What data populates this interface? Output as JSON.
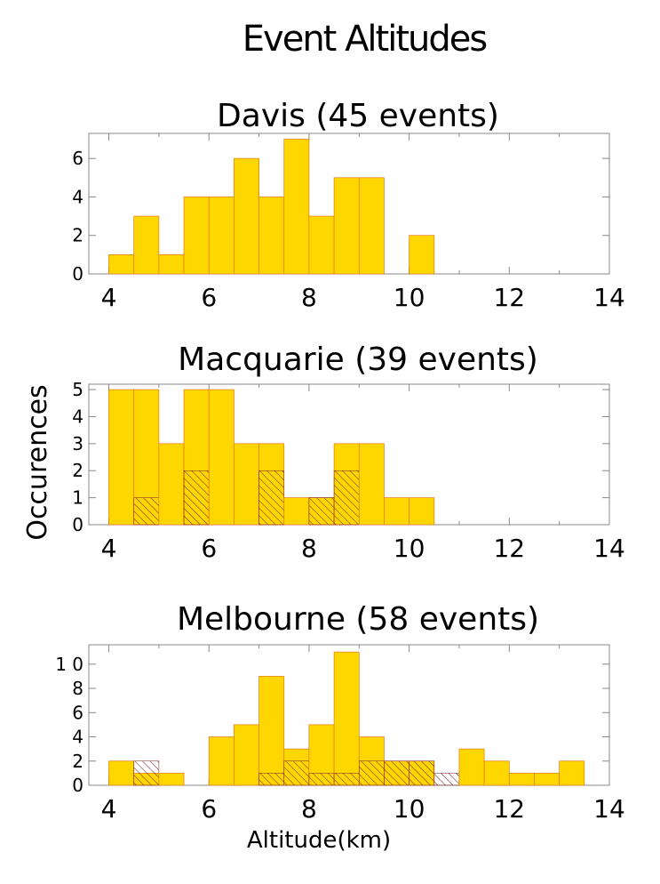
{
  "figure_title": "Event Altitudes",
  "ylabel": "Occurences",
  "xlabel": "Altitude(km)",
  "colors": {
    "bar_fill": "#FFD700",
    "bar_edge": "#E07818",
    "hatch": "#7A1F1F",
    "axis": "#888888"
  },
  "chart_data": [
    {
      "type": "bar",
      "title": "Davis (45 events)",
      "bin_width": 0.5,
      "bins_start": [
        4,
        4.5,
        5,
        5.5,
        6,
        6.5,
        7,
        7.5,
        8,
        8.5,
        9,
        9.5,
        10,
        10.5,
        11,
        11.5,
        12,
        12.5,
        13,
        13.5
      ],
      "values": [
        1,
        3,
        1,
        4,
        4,
        6,
        4,
        7,
        3,
        5,
        5,
        0,
        2,
        0,
        0,
        0,
        0,
        0,
        0,
        0
      ],
      "hatched_values": [],
      "xlim": [
        3.6,
        14
      ],
      "ylim": [
        0,
        7.3
      ],
      "xticks": [
        4,
        6,
        8,
        10,
        12,
        14
      ],
      "yticks": [
        0,
        2,
        4,
        6
      ],
      "ytick_labels": [
        "0",
        "2",
        "4",
        "6"
      ]
    },
    {
      "type": "bar",
      "title": "Macquarie (39 events)",
      "bin_width": 0.5,
      "bins_start": [
        4,
        4.5,
        5,
        5.5,
        6,
        6.5,
        7,
        7.5,
        8,
        8.5,
        9,
        9.5,
        10,
        10.5,
        11,
        11.5,
        12,
        12.5,
        13,
        13.5
      ],
      "values": [
        5,
        5,
        3,
        5,
        5,
        3,
        3,
        1,
        1,
        3,
        3,
        1,
        1,
        0,
        0,
        0,
        0,
        0,
        0,
        0
      ],
      "hatched_values": [
        0,
        1,
        0,
        2,
        0,
        0,
        2,
        0,
        1,
        2,
        0,
        0,
        0,
        0,
        0,
        0,
        0,
        0,
        0,
        0
      ],
      "xlim": [
        3.6,
        14
      ],
      "ylim": [
        0,
        5.2
      ],
      "xticks": [
        4,
        6,
        8,
        10,
        12,
        14
      ],
      "yticks": [
        0,
        1,
        2,
        3,
        4,
        5
      ],
      "ytick_labels": [
        "0",
        "1",
        "2",
        "3",
        "4",
        "5"
      ]
    },
    {
      "type": "bar",
      "title": "Melbourne (58 events)",
      "bin_width": 0.5,
      "bins_start": [
        4,
        4.5,
        5,
        5.5,
        6,
        6.5,
        7,
        7.5,
        8,
        8.5,
        9,
        9.5,
        10,
        10.5,
        11,
        11.5,
        12,
        12.5,
        13,
        13.5
      ],
      "values": [
        2,
        1,
        1,
        0,
        4,
        5,
        9,
        3,
        5,
        11,
        4,
        2,
        2,
        0,
        3,
        2,
        1,
        1,
        2,
        0
      ],
      "hatched_values": [
        0,
        2,
        0,
        0,
        0,
        0,
        1,
        2,
        1,
        1,
        2,
        2,
        2,
        1,
        0,
        0,
        0,
        0,
        0,
        0
      ],
      "xlim": [
        3.6,
        14
      ],
      "ylim": [
        0,
        11.6
      ],
      "xticks": [
        4,
        6,
        8,
        10,
        12,
        14
      ],
      "yticks": [
        0,
        2,
        4,
        6,
        8,
        10
      ],
      "ytick_labels": [
        "0",
        "2",
        "4",
        "6",
        "8",
        "1 0"
      ]
    }
  ]
}
